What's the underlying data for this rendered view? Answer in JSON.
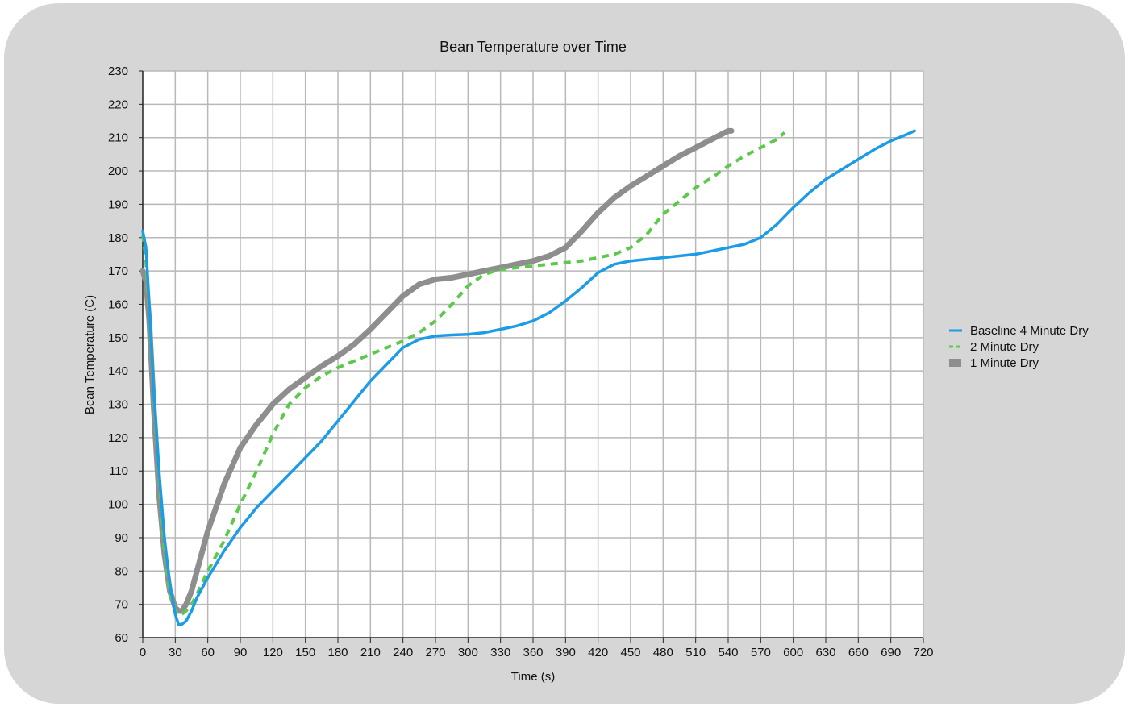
{
  "chart_data": {
    "type": "line",
    "title": "Bean Temperature over Time",
    "xlabel": "Time (s)",
    "ylabel": "Bean Temperature (C)",
    "xlim": [
      0,
      720
    ],
    "ylim": [
      60,
      230
    ],
    "xticks": [
      0,
      30,
      60,
      90,
      120,
      150,
      180,
      210,
      240,
      270,
      300,
      330,
      360,
      390,
      420,
      450,
      480,
      510,
      540,
      570,
      600,
      630,
      660,
      690,
      720
    ],
    "yticks": [
      60,
      70,
      80,
      90,
      100,
      110,
      120,
      130,
      140,
      150,
      160,
      170,
      180,
      190,
      200,
      210,
      220,
      230
    ],
    "grid": true,
    "legend_position": "right",
    "series": [
      {
        "name": "Baseline 4 Minute Dry",
        "color": "#1c9be6",
        "style": "solid",
        "x": [
          0,
          3,
          6,
          10,
          15,
          20,
          25,
          30,
          33,
          36,
          40,
          45,
          50,
          60,
          75,
          90,
          105,
          120,
          135,
          150,
          165,
          180,
          195,
          210,
          225,
          240,
          255,
          270,
          285,
          300,
          315,
          330,
          345,
          360,
          375,
          390,
          405,
          420,
          435,
          450,
          465,
          480,
          495,
          510,
          525,
          540,
          555,
          570,
          585,
          600,
          615,
          630,
          645,
          660,
          675,
          690,
          705,
          712
        ],
        "y": [
          182,
          177,
          160,
          135,
          110,
          90,
          76,
          67,
          64,
          64,
          65,
          68,
          72,
          78,
          86,
          93,
          99,
          104,
          109,
          114,
          119,
          125,
          131,
          137,
          142,
          147,
          149.5,
          150.5,
          150.8,
          151,
          151.5,
          152.5,
          153.5,
          155,
          157.5,
          161,
          165,
          169.5,
          172,
          173,
          173.5,
          174,
          174.5,
          175,
          176,
          177,
          178,
          180,
          184,
          189,
          193.5,
          197.5,
          200.5,
          203.5,
          206.5,
          209,
          211,
          212
        ]
      },
      {
        "name": "2 Minute Dry",
        "color": "#5cc94c",
        "style": "dashed",
        "x": [
          0,
          3,
          6,
          10,
          15,
          20,
          25,
          30,
          33,
          36,
          40,
          45,
          50,
          60,
          75,
          90,
          105,
          120,
          135,
          150,
          165,
          180,
          195,
          210,
          225,
          240,
          255,
          270,
          285,
          300,
          315,
          330,
          345,
          360,
          375,
          390,
          405,
          420,
          435,
          450,
          465,
          480,
          495,
          510,
          525,
          540,
          555,
          570,
          585,
          592
        ],
        "y": [
          181,
          173,
          158,
          135,
          108,
          86,
          73,
          68,
          67,
          67,
          68,
          70,
          73,
          80,
          89,
          100,
          110,
          121,
          130,
          135,
          138.5,
          141,
          143,
          145,
          147,
          149,
          151.5,
          155,
          160,
          165.5,
          169,
          170.5,
          171,
          171.5,
          172,
          172.5,
          173,
          174,
          175,
          177,
          181,
          187,
          191,
          195,
          198,
          201.5,
          204.5,
          207,
          209.5,
          211.5
        ]
      },
      {
        "name": "1 Minute Dry",
        "color": "#8e8e8e",
        "style": "thick",
        "x": [
          0,
          3,
          6,
          10,
          15,
          20,
          25,
          30,
          33,
          36,
          40,
          45,
          50,
          60,
          75,
          90,
          105,
          120,
          135,
          150,
          165,
          180,
          195,
          210,
          225,
          240,
          255,
          270,
          285,
          300,
          315,
          330,
          345,
          360,
          375,
          390,
          405,
          420,
          435,
          450,
          465,
          480,
          495,
          510,
          525,
          540,
          543
        ],
        "y": [
          170,
          167,
          155,
          130,
          103,
          85,
          74,
          69,
          68,
          68,
          70,
          74,
          80,
          92,
          106,
          117,
          124,
          130,
          134.5,
          138,
          141.5,
          144.5,
          148,
          152.5,
          157.5,
          162.5,
          166,
          167.5,
          168,
          169,
          170,
          171,
          172,
          173,
          174.5,
          177,
          182,
          187.5,
          192,
          195.5,
          198.5,
          201.5,
          204.5,
          207,
          209.5,
          212,
          212
        ]
      }
    ]
  }
}
